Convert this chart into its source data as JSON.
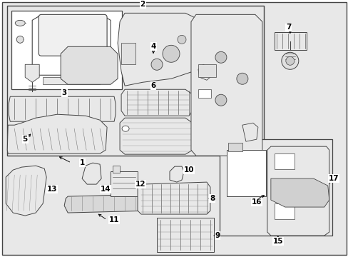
{
  "bg_color": "#e8e8e8",
  "white": "#ffffff",
  "black": "#000000",
  "gray": "#cccccc",
  "border_color": "#333333",
  "line_color": "#444444",
  "fig_w": 4.89,
  "fig_h": 3.6,
  "dpi": 100
}
